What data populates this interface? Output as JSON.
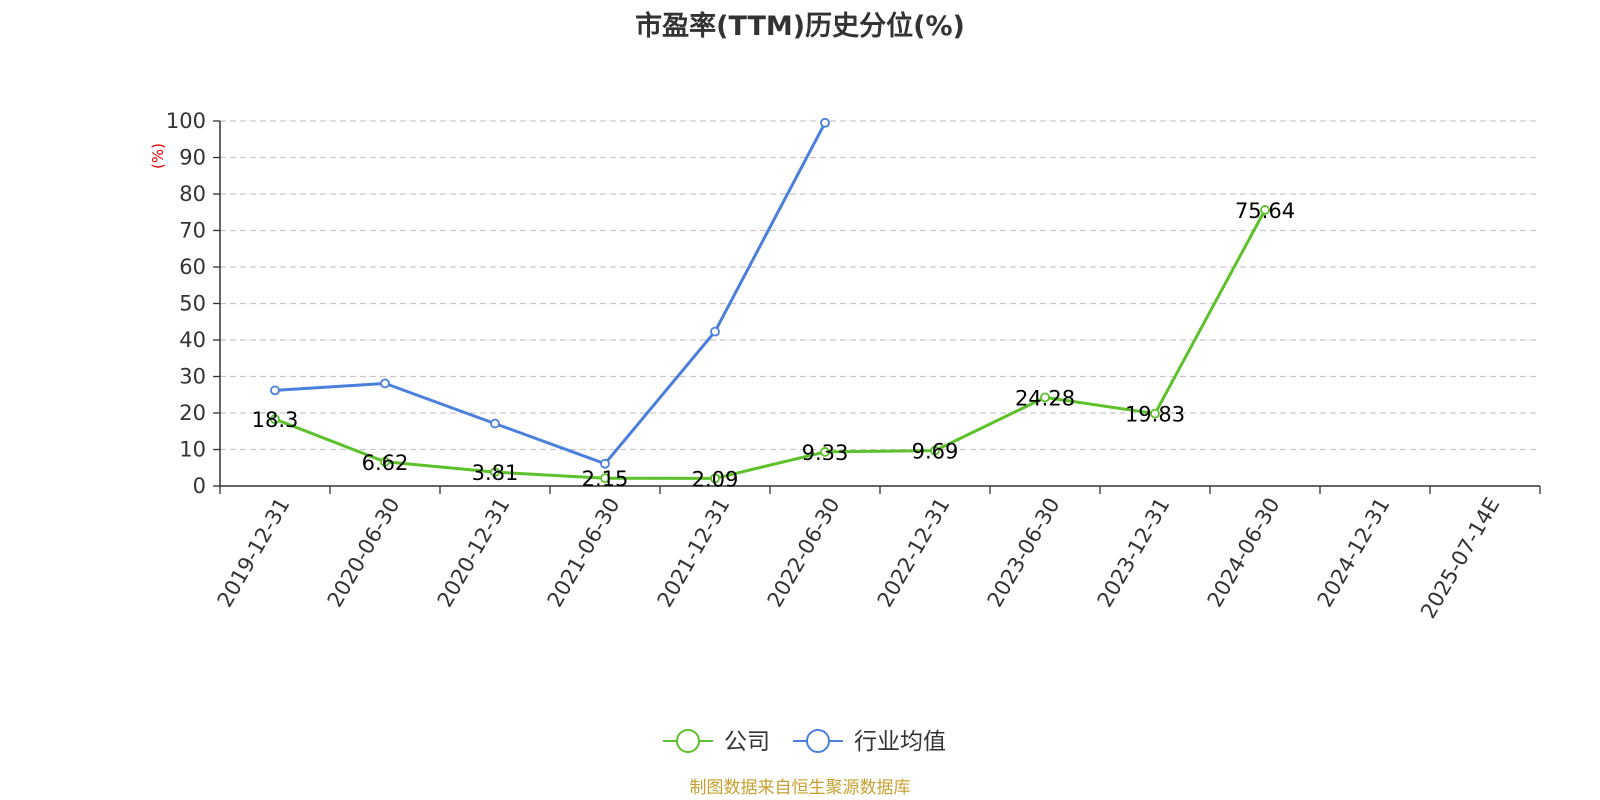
{
  "chart_data": {
    "type": "line",
    "title": "市盈率(TTM)历史分位(%)",
    "ylabel": "(%)",
    "xlabel": "",
    "ylim": [
      0,
      100
    ],
    "yticks": [
      0,
      10,
      20,
      30,
      40,
      50,
      60,
      70,
      80,
      90,
      100
    ],
    "grid": true,
    "legend_position": "bottom",
    "categories": [
      "2019-12-31",
      "2020-06-30",
      "2020-12-31",
      "2021-06-30",
      "2021-12-31",
      "2022-06-30",
      "2022-12-31",
      "2023-06-30",
      "2023-12-31",
      "2024-06-30",
      "2024-12-31",
      "2025-07-14E"
    ],
    "series": [
      {
        "name": "公司",
        "color": "#5cc12a",
        "values": [
          18.3,
          6.62,
          3.81,
          2.15,
          2.09,
          9.33,
          9.69,
          24.28,
          19.83,
          75.64,
          null,
          null
        ],
        "labels": [
          "18.3",
          "6.62",
          "3.81",
          "2.15",
          "2.09",
          "9.33",
          "9.69",
          "24.28",
          "19.83",
          "75.64",
          "",
          ""
        ]
      },
      {
        "name": "行业均值",
        "color": "#4a7fdc",
        "values": [
          26.2,
          28.1,
          17.1,
          6.1,
          42.3,
          99.5,
          null,
          null,
          null,
          null,
          null,
          null
        ]
      }
    ]
  },
  "source_note": "制图数据来自恒生聚源数据库"
}
